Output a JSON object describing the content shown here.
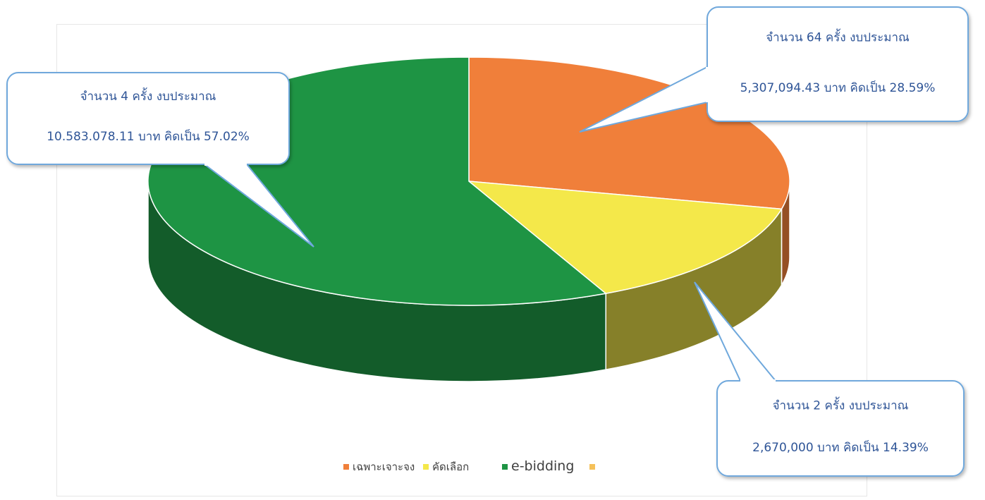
{
  "chart_data": {
    "type": "pie",
    "style": "3d",
    "legend_position": "bottom",
    "slices": [
      {
        "label": "เฉพาะเจาะจง",
        "value": 28.59,
        "color": "#f07f3a",
        "callout_line1": "จำนวน 64 ครั้ง งบประมาณ",
        "callout_line2": "5,307,094.43 บาท คิดเป็น 28.59%"
      },
      {
        "label": "คัดเลือก",
        "value": 14.39,
        "color": "#f4e84a",
        "callout_line1": "จำนวน 2 ครั้ง งบประมาณ",
        "callout_line2": "2,670,000 บาท คิดเป็น 14.39%"
      },
      {
        "label": "e-bidding",
        "value": 57.02,
        "color": "#1e9444",
        "callout_line1": "จำนวน 4 ครั้ง งบประมาณ",
        "callout_line2": "10.583.078.11 บาท คิดเป็น 57.02%"
      }
    ],
    "legend_extra": {
      "label": "",
      "color": "#f5c15a"
    }
  }
}
